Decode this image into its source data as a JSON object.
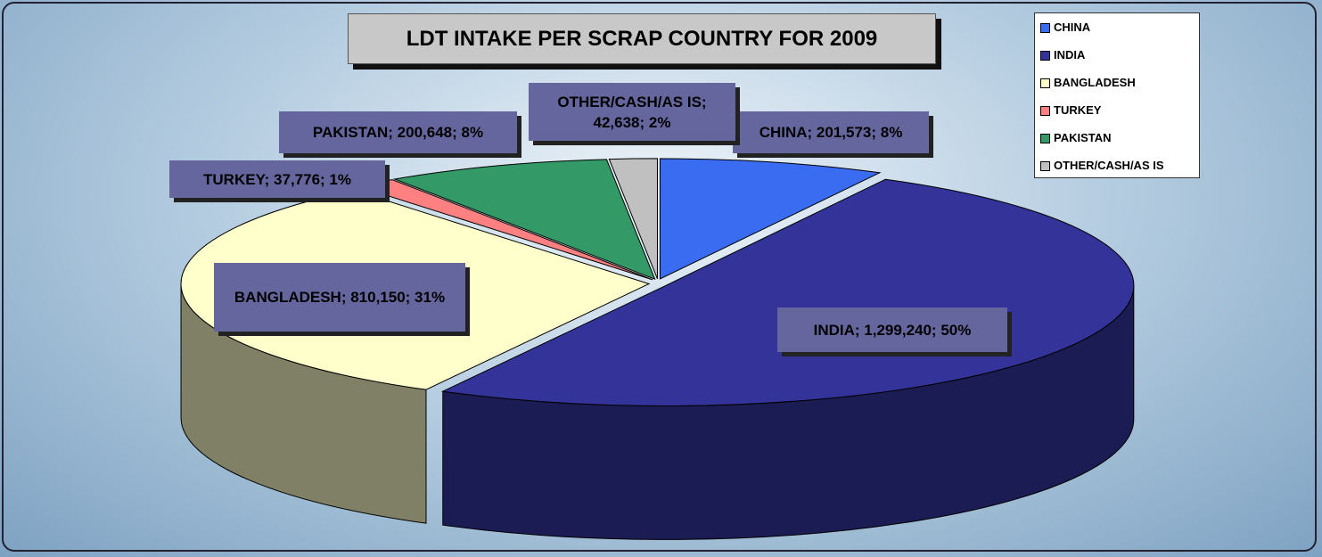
{
  "chart_data": {
    "type": "pie3d",
    "title": "LDT INTAKE PER SCRAP COUNTRY FOR 2009",
    "categories": [
      "CHINA",
      "INDIA",
      "BANGLADESH",
      "TURKEY",
      "PAKISTAN",
      "OTHER/CASH/AS IS"
    ],
    "values": [
      201573,
      1299240,
      810150,
      37776,
      200648,
      42638
    ],
    "value_labels": [
      "CHINA; 201,573; 8%",
      "INDIA; 1,299,240; 50%",
      "BANGLADESH; 810,150; 31%",
      "TURKEY; 37,776; 1%",
      "PAKISTAN; 200,648; 8%",
      "OTHER/CASH/AS IS; 42,638; 2%"
    ],
    "colors": [
      "#3a6cf2",
      "#333399",
      "#ffffcc",
      "#ff8080",
      "#339966",
      "#c0c0c0"
    ],
    "legend": "top-right"
  }
}
